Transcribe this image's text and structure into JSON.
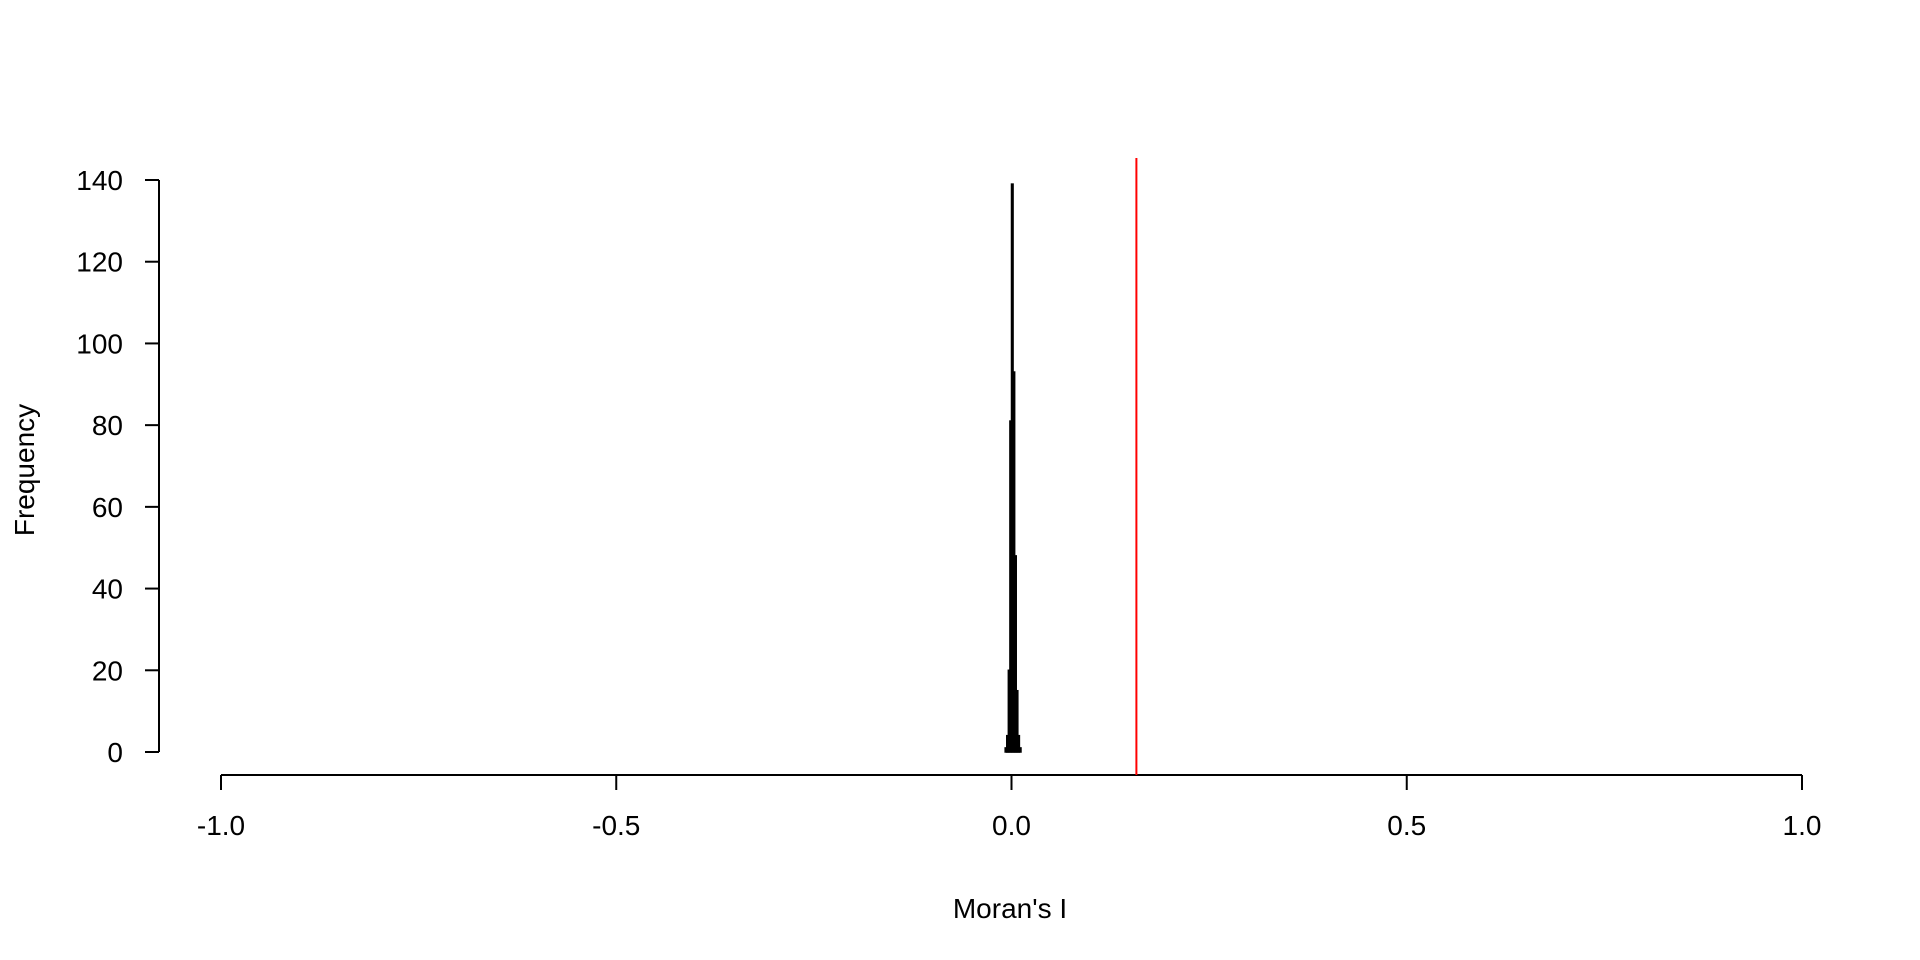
{
  "chart_data": {
    "type": "histogram",
    "title": "",
    "xlabel": "Moran's I",
    "ylabel": "Frequency",
    "xlim": [
      -1.0,
      1.0
    ],
    "ylim": [
      0,
      140
    ],
    "x_ticks": [
      -1.0,
      -0.5,
      0.0,
      0.5,
      1.0
    ],
    "x_tick_labels": [
      "-1.0",
      "-0.5",
      "0.0",
      "0.5",
      "1.0"
    ],
    "y_ticks": [
      0,
      20,
      40,
      60,
      80,
      100,
      120,
      140
    ],
    "y_tick_labels": [
      "0",
      "20",
      "40",
      "60",
      "80",
      "100",
      "120",
      "140"
    ],
    "bins": [
      {
        "x0": -0.008,
        "x1": -0.006,
        "count": 1
      },
      {
        "x0": -0.006,
        "x1": -0.004,
        "count": 4
      },
      {
        "x0": -0.004,
        "x1": -0.002,
        "count": 20
      },
      {
        "x0": -0.002,
        "x1": 0.0,
        "count": 81
      },
      {
        "x0": 0.0,
        "x1": 0.002,
        "count": 139
      },
      {
        "x0": 0.002,
        "x1": 0.004,
        "count": 93
      },
      {
        "x0": 0.004,
        "x1": 0.006,
        "count": 48
      },
      {
        "x0": 0.006,
        "x1": 0.008,
        "count": 15
      },
      {
        "x0": 0.008,
        "x1": 0.01,
        "count": 4
      },
      {
        "x0": 0.01,
        "x1": 0.012,
        "count": 1
      }
    ],
    "reference_line": {
      "x": 0.158,
      "color": "#ff0000"
    },
    "grid": false,
    "legend": "none"
  }
}
